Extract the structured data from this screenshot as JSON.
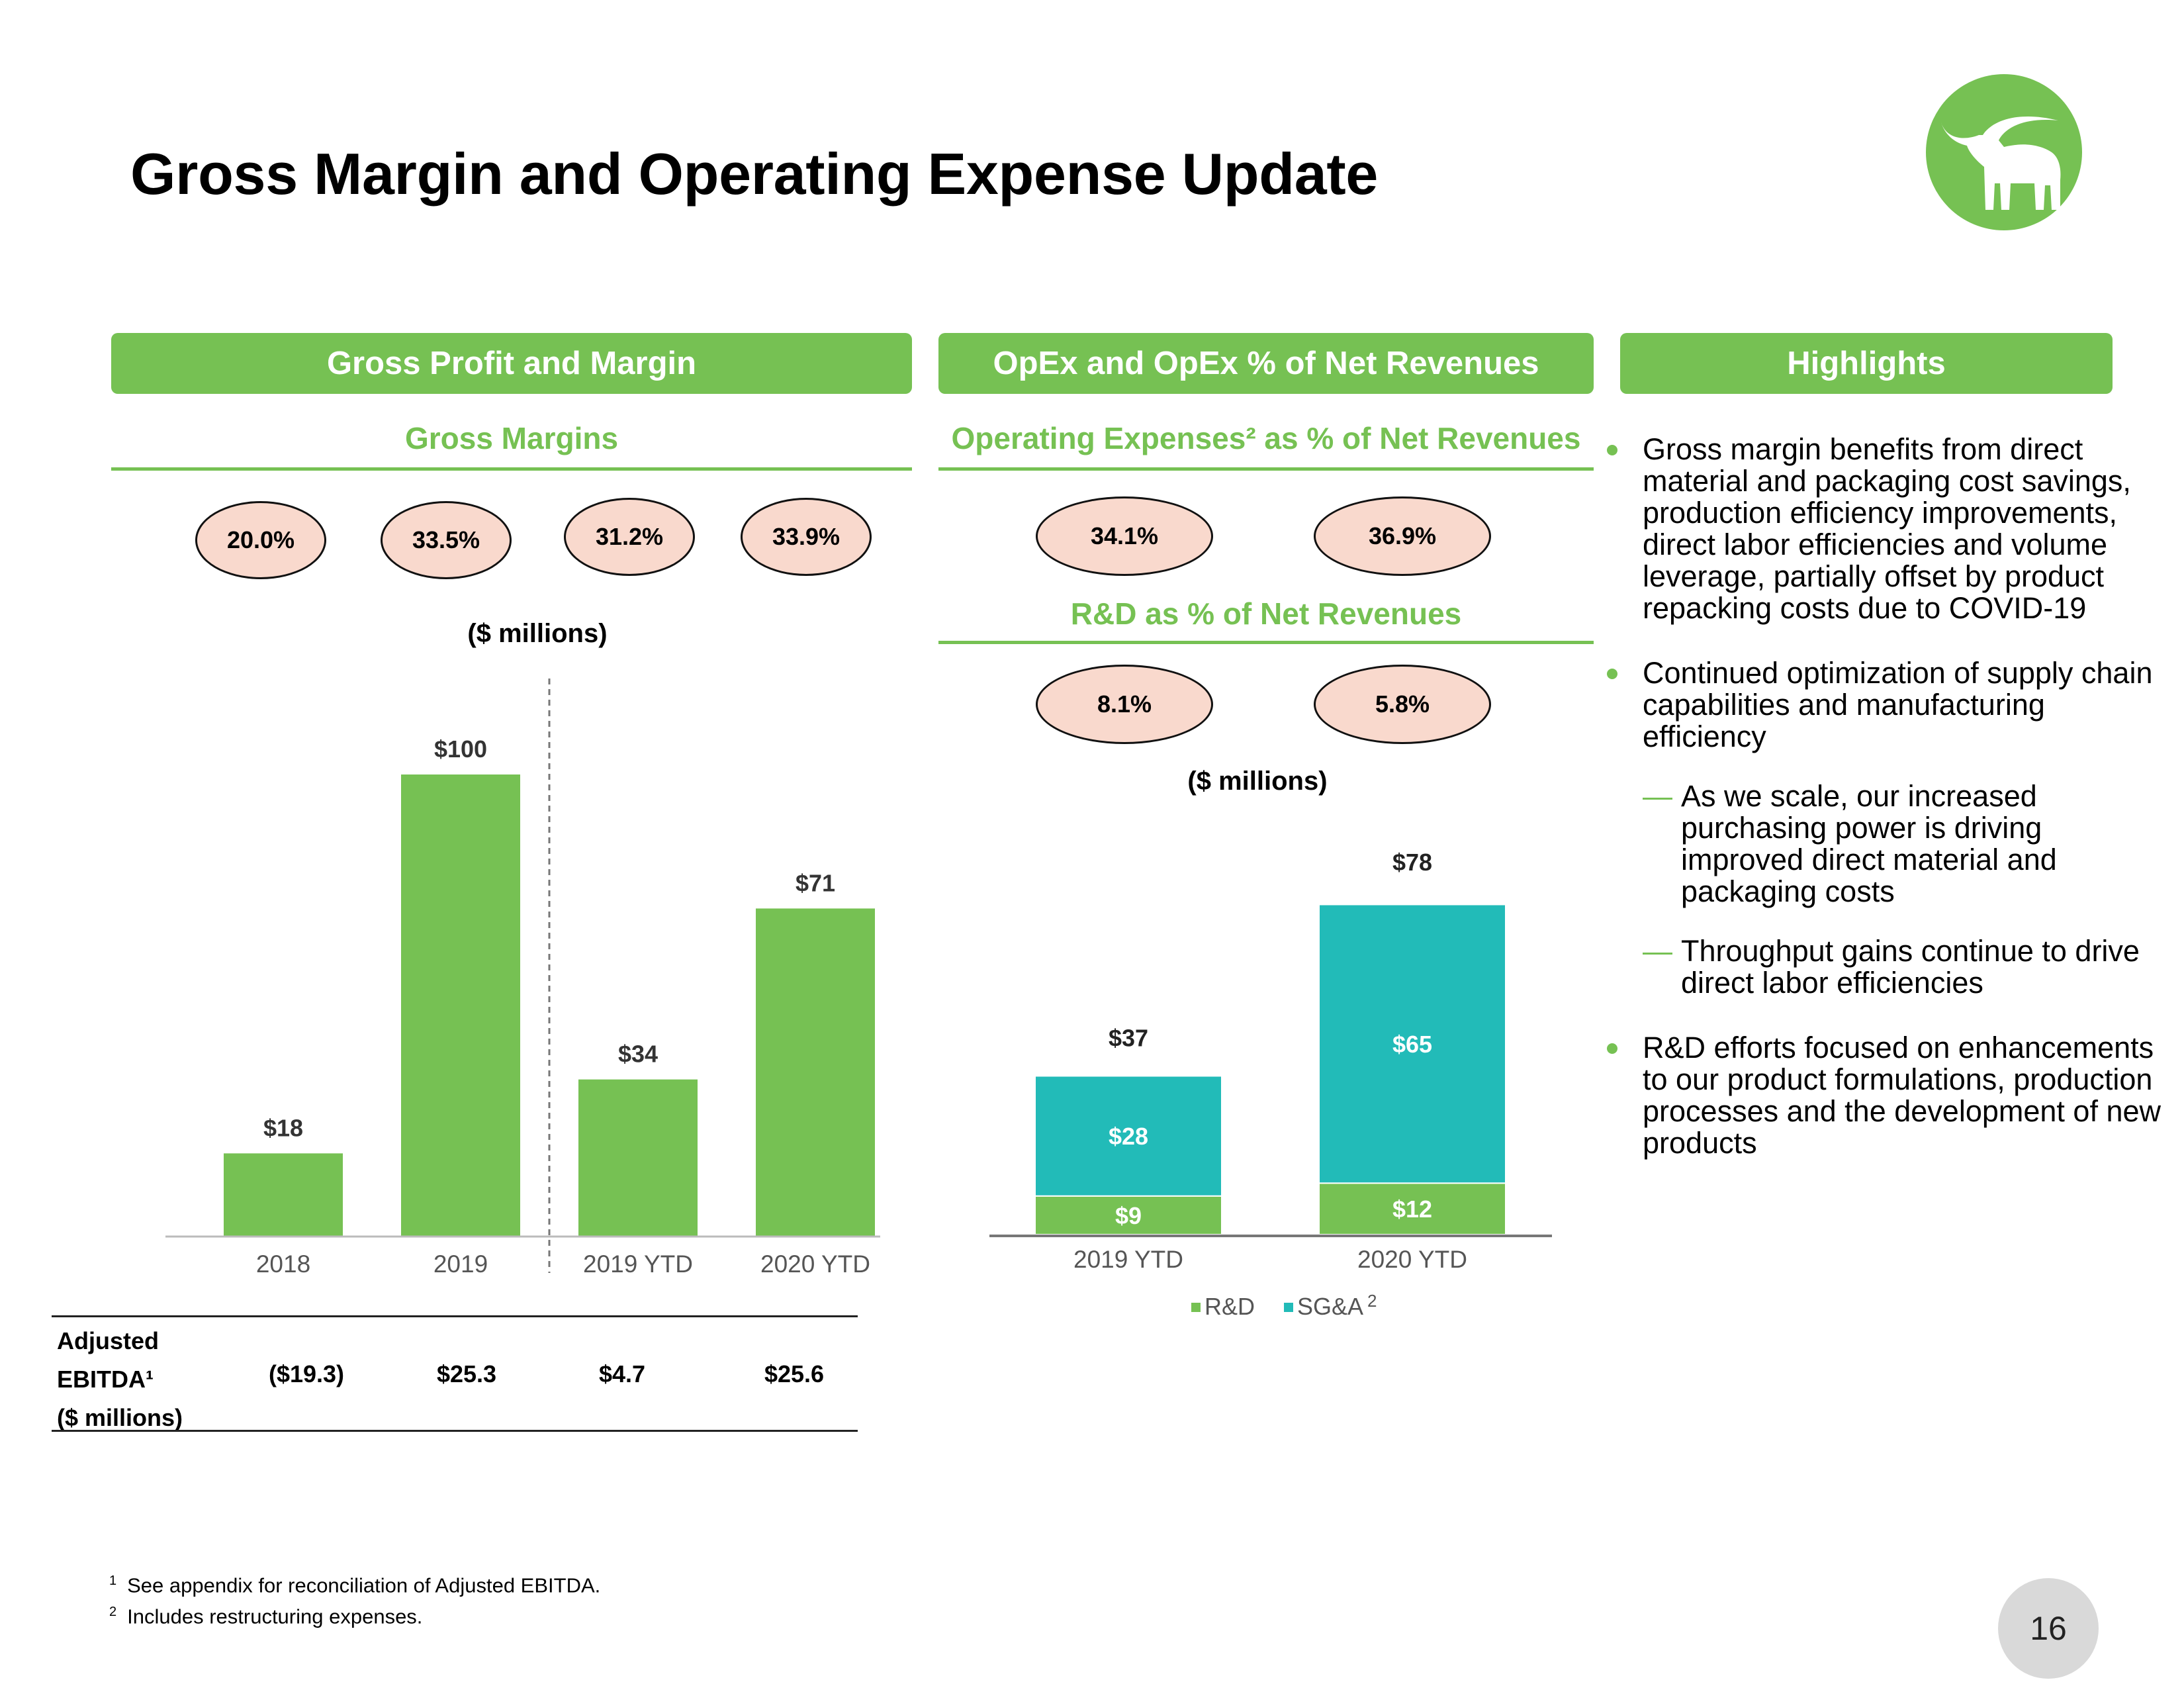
{
  "title": "Gross Margin and Operating Expense Update",
  "colors": {
    "green": "#76c153",
    "teal": "#22bbb8",
    "oval_fill": "#f9d9cd"
  },
  "logo": {
    "icon": "longhorn-steer-icon"
  },
  "left_panel": {
    "header": "Gross Profit and Margin",
    "subheader": "Gross Margins",
    "margins": [
      "20.0%",
      "33.5%",
      "31.2%",
      "33.9%"
    ],
    "units": "($ millions)",
    "ebitda": {
      "label_lines": [
        "Adjusted",
        "EBITDA¹",
        "($ millions)"
      ],
      "values": [
        "($19.3)",
        "$25.3",
        "$4.7",
        "$25.6"
      ]
    }
  },
  "middle_panel": {
    "header": "OpEx and OpEx % of Net Revenues",
    "opex_subheader": "Operating Expenses² as % of Net Revenues",
    "opex_pcts": [
      "34.1%",
      "36.9%"
    ],
    "rd_subheader": "R&D as % of Net Revenues",
    "rd_pcts": [
      "8.1%",
      "5.8%"
    ],
    "units": "($ millions)"
  },
  "right_panel": {
    "header": "Highlights",
    "bullets": [
      {
        "text": "Gross margin benefits from direct material and packaging cost savings, production efficiency improvements, direct labor efficiencies and volume leverage, partially offset by product repacking costs due to COVID-19",
        "subs": []
      },
      {
        "text": "Continued optimization of supply chain capabilities and manufacturing efficiency",
        "subs": [
          "As we scale, our increased purchasing power is driving improved direct material and packaging costs",
          "Throughput gains continue to drive direct labor efficiencies"
        ]
      },
      {
        "text": "R&D efforts focused on enhancements to our product formulations, production processes and the development of new products",
        "subs": []
      }
    ],
    "sub_marker": "—"
  },
  "footnotes": [
    {
      "mark": "1",
      "text": "See appendix for reconciliation of Adjusted EBITDA."
    },
    {
      "mark": "2",
      "text": "Includes restructuring expenses."
    }
  ],
  "page_number": "16",
  "chart_data": [
    {
      "type": "bar",
      "categories": [
        "2018",
        "2019",
        "2019 YTD",
        "2020 YTD"
      ],
      "values": [
        18,
        100,
        34,
        71
      ],
      "data_labels": [
        "$18",
        "$100",
        "$34",
        "$71"
      ],
      "ylim": [
        0,
        100
      ],
      "grid": false,
      "divider_after_index": 1
    },
    {
      "type": "bar",
      "stacked": true,
      "categories": [
        "2019 YTD",
        "2020 YTD"
      ],
      "series": [
        {
          "name": "R&D",
          "values": [
            9,
            12
          ],
          "labels": [
            "$9",
            "$12"
          ],
          "color": "#76c153"
        },
        {
          "name": "SG&A",
          "name_sup": "2",
          "values": [
            28,
            65
          ],
          "labels": [
            "$28",
            "$65"
          ],
          "color": "#22bbb8"
        }
      ],
      "totals": [
        37,
        78
      ],
      "total_labels": [
        "$37",
        "$78"
      ],
      "ylim": [
        0,
        78
      ],
      "grid": false,
      "legend": "bottom"
    }
  ]
}
